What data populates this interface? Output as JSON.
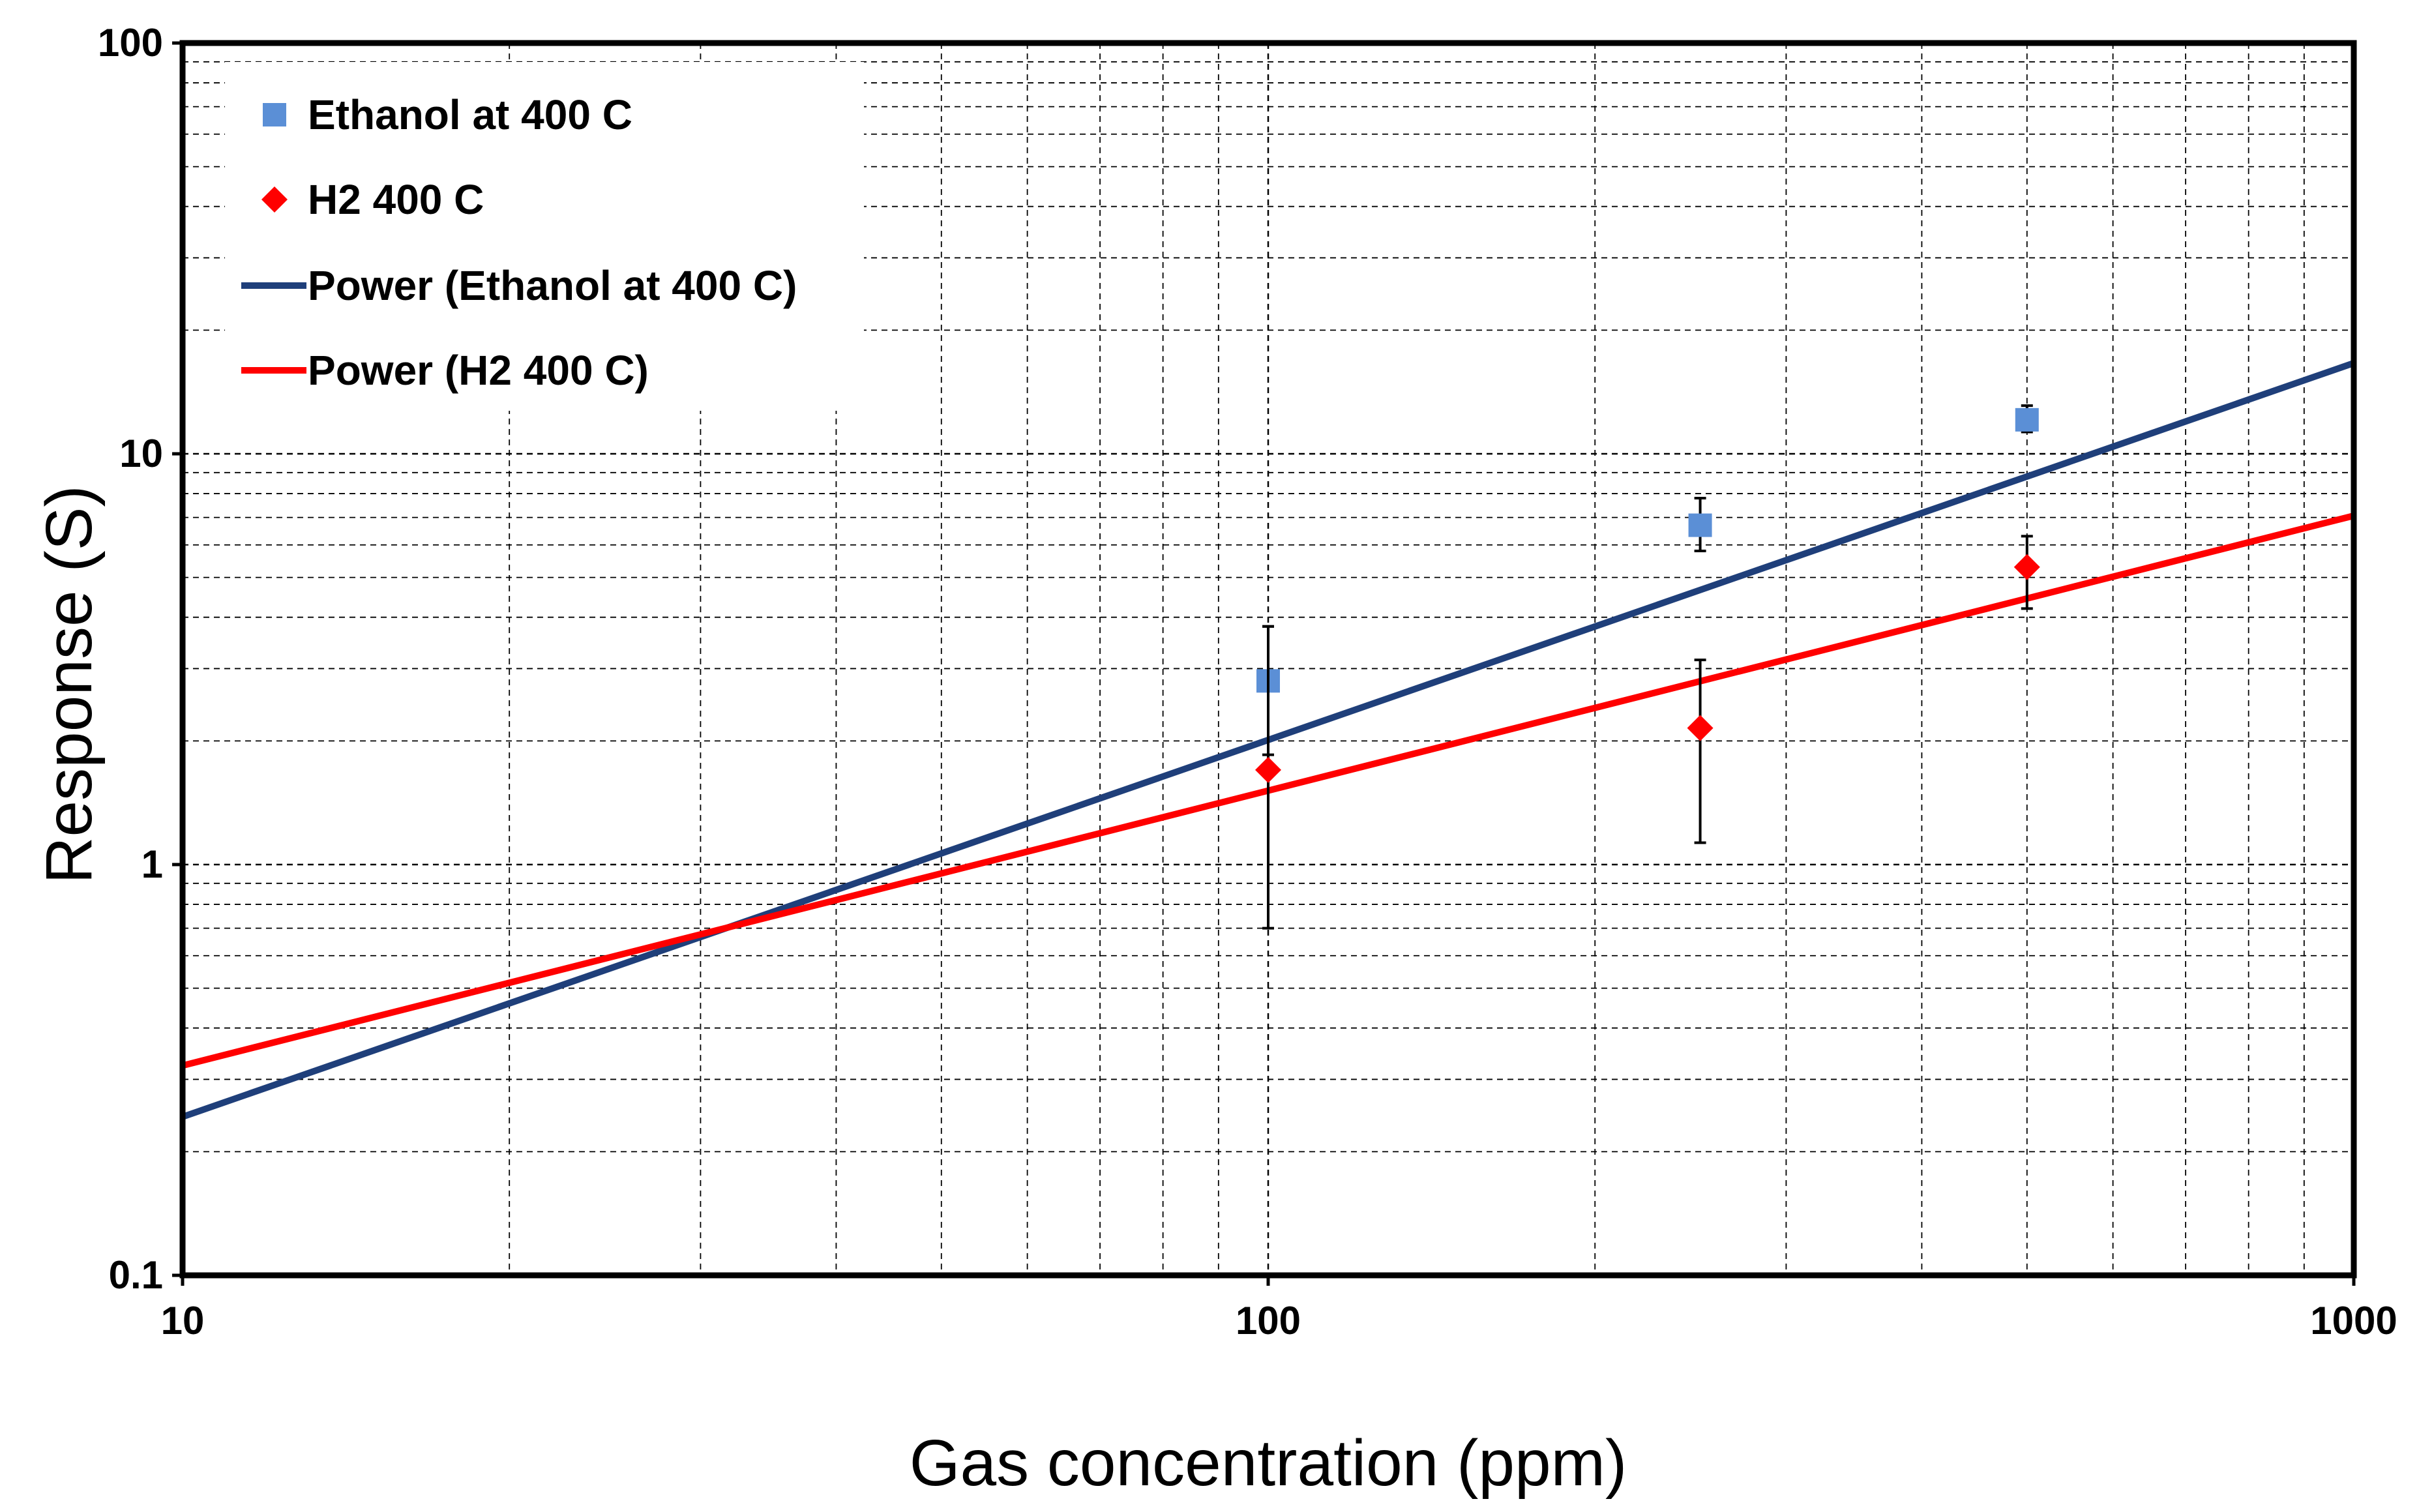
{
  "chart_data": {
    "type": "scatter",
    "title": "",
    "xlabel": "Gas concentration (ppm)",
    "ylabel": "Response (S)",
    "xscale": "log",
    "yscale": "log",
    "xlim": [
      10,
      1000
    ],
    "ylim": [
      0.1,
      100
    ],
    "x_tick_labels": [
      "10",
      "100",
      "1000"
    ],
    "y_tick_labels": [
      "0.1",
      "1",
      "10",
      "100"
    ],
    "grid": true,
    "legend_position": "top-left",
    "series": [
      {
        "name": "Ethanol at 400 C",
        "kind": "points",
        "marker": "square",
        "color": "#5B8FD6",
        "points": [
          {
            "x": 100,
            "y": 2.8,
            "err_low": 0.95,
            "err_high": 1.0
          },
          {
            "x": 250,
            "y": 6.7,
            "err_low": 0.9,
            "err_high": 1.1
          },
          {
            "x": 500,
            "y": 12.1,
            "err_low": 0.8,
            "err_high": 1.0
          }
        ]
      },
      {
        "name": "H2 400 C",
        "kind": "points",
        "marker": "diamond",
        "color": "#FF0000",
        "points": [
          {
            "x": 100,
            "y": 1.7,
            "err_low": 1.0,
            "err_high": 2.1
          },
          {
            "x": 250,
            "y": 2.15,
            "err_low": 1.02,
            "err_high": 1.0
          },
          {
            "x": 500,
            "y": 5.3,
            "err_low": 1.1,
            "err_high": 1.0
          }
        ]
      },
      {
        "name": "Power (Ethanol at 400 C)",
        "kind": "trendline",
        "fit": "power",
        "color": "#1F3F7A",
        "coefficient": 0.0294,
        "exponent": 0.9175
      },
      {
        "name": "Power (H2 400 C)",
        "kind": "trendline",
        "fit": "power",
        "color": "#FF0000",
        "coefficient": 0.0694,
        "exponent": 0.6693
      }
    ]
  }
}
